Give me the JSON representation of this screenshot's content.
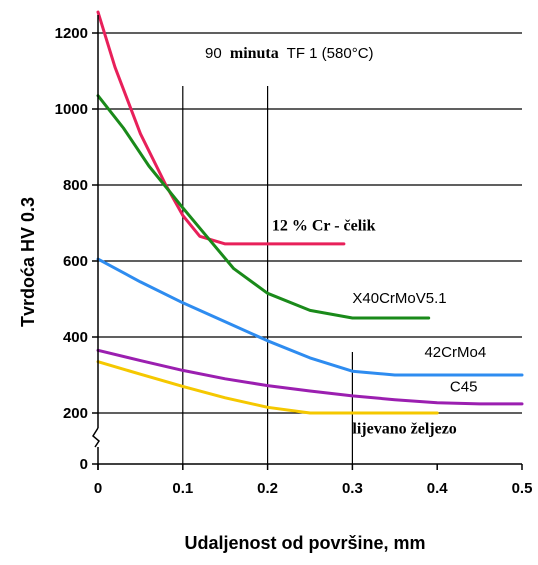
{
  "chart_data": {
    "type": "line",
    "title": "",
    "xlabel": "Udaljenost od površine, mm",
    "ylabel": "Tvrdoća HV 0.3",
    "xlim": [
      0,
      0.5
    ],
    "ylim_broken": true,
    "x_ticks": [
      "0",
      "0.1",
      "0.2",
      "0.3",
      "0.4",
      "0.5"
    ],
    "y_ticks": [
      "0",
      "200",
      "400",
      "600",
      "800",
      "1000",
      "1200"
    ],
    "annotations": {
      "condition_part1": "90",
      "condition_part2": "minuta",
      "condition_part3": "TF 1 (580°C)"
    },
    "series": [
      {
        "name": "12 % Cr - čelik",
        "color": "#e8205a",
        "x": [
          0,
          0.02,
          0.05,
          0.08,
          0.1,
          0.12,
          0.15,
          0.2,
          0.25,
          0.29
        ],
        "y": [
          1255,
          1110,
          935,
          800,
          720,
          665,
          645,
          645,
          645,
          645
        ]
      },
      {
        "name": "X40CrMoV5.1",
        "color": "#1a8a1a",
        "x": [
          0,
          0.03,
          0.06,
          0.1,
          0.13,
          0.16,
          0.2,
          0.25,
          0.3,
          0.35,
          0.39
        ],
        "y": [
          1035,
          950,
          850,
          740,
          660,
          580,
          515,
          470,
          450,
          450,
          450
        ]
      },
      {
        "name": "42CrMo4",
        "color": "#2e8cf0",
        "x": [
          0,
          0.05,
          0.1,
          0.15,
          0.2,
          0.25,
          0.3,
          0.35,
          0.4,
          0.5
        ],
        "y": [
          605,
          545,
          490,
          440,
          390,
          345,
          310,
          300,
          300,
          300
        ]
      },
      {
        "name": "C45",
        "color": "#9b1fb0",
        "x": [
          0,
          0.05,
          0.1,
          0.15,
          0.2,
          0.25,
          0.3,
          0.35,
          0.4,
          0.45,
          0.5
        ],
        "y": [
          365,
          338,
          312,
          290,
          272,
          258,
          245,
          235,
          227,
          224,
          224
        ]
      },
      {
        "name": "lijevano željezo",
        "color": "#f5c800",
        "x": [
          0,
          0.05,
          0.1,
          0.15,
          0.2,
          0.25,
          0.3,
          0.35,
          0.4
        ],
        "y": [
          335,
          302,
          270,
          240,
          215,
          200,
          200,
          200,
          200
        ]
      }
    ]
  }
}
